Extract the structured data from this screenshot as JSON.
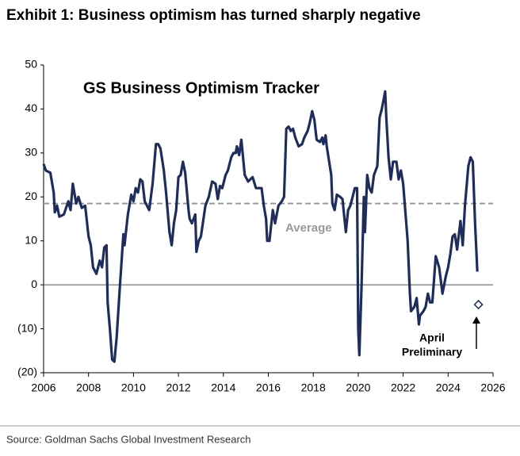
{
  "chart_data": {
    "type": "line",
    "title": "Exhibit 1: Business optimism has turned sharply negative",
    "inner_title": "GS Business Optimism Tracker",
    "source": "Source: Goldman Sachs Global Investment Research",
    "average_label": "Average",
    "average": 18.5,
    "annotation": [
      "April",
      "Preliminary"
    ],
    "color": "#1f2d5c",
    "average_color": "#999999",
    "xlim": [
      2006,
      2026
    ],
    "xticks": [
      2006,
      2008,
      2010,
      2012,
      2014,
      2016,
      2018,
      2020,
      2022,
      2024,
      2026
    ],
    "ylim": [
      -20,
      50
    ],
    "yticks": [
      {
        "value": -20,
        "label": "(20)"
      },
      {
        "value": -10,
        "label": "(10)"
      },
      0,
      10,
      20,
      30,
      40,
      50
    ],
    "x": [
      2006.0,
      2006.1,
      2006.3,
      2006.45,
      2006.5,
      2006.6,
      2006.7,
      2006.9,
      2007.1,
      2007.2,
      2007.3,
      2007.45,
      2007.55,
      2007.7,
      2007.85,
      2008.0,
      2008.1,
      2008.2,
      2008.35,
      2008.5,
      2008.6,
      2008.7,
      2008.8,
      2008.85,
      2008.95,
      2009.05,
      2009.15,
      2009.25,
      2009.4,
      2009.55,
      2009.6,
      2009.75,
      2009.9,
      2010.0,
      2010.1,
      2010.2,
      2010.3,
      2010.4,
      2010.5,
      2010.7,
      2010.85,
      2011.0,
      2011.1,
      2011.2,
      2011.35,
      2011.45,
      2011.6,
      2011.7,
      2011.8,
      2011.9,
      2012.0,
      2012.1,
      2012.2,
      2012.3,
      2012.45,
      2012.5,
      2012.6,
      2012.75,
      2012.8,
      2012.9,
      2013.0,
      2013.2,
      2013.35,
      2013.5,
      2013.65,
      2013.75,
      2013.85,
      2013.95,
      2014.1,
      2014.2,
      2014.35,
      2014.45,
      2014.55,
      2014.6,
      2014.7,
      2014.8,
      2014.95,
      2015.1,
      2015.2,
      2015.3,
      2015.45,
      2015.55,
      2015.7,
      2015.8,
      2015.9,
      2015.95,
      2016.05,
      2016.2,
      2016.3,
      2016.45,
      2016.6,
      2016.7,
      2016.8,
      2016.9,
      2017.0,
      2017.1,
      2017.2,
      2017.35,
      2017.5,
      2017.6,
      2017.75,
      2017.85,
      2017.95,
      2018.05,
      2018.15,
      2018.3,
      2018.4,
      2018.45,
      2018.55,
      2018.6,
      2018.8,
      2018.85,
      2018.95,
      2019.05,
      2019.2,
      2019.3,
      2019.45,
      2019.55,
      2019.65,
      2019.75,
      2019.85,
      2019.95,
      2020.0,
      2020.05,
      2020.15,
      2020.25,
      2020.3,
      2020.4,
      2020.5,
      2020.6,
      2020.7,
      2020.85,
      2020.95,
      2021.05,
      2021.2,
      2021.25,
      2021.35,
      2021.45,
      2021.55,
      2021.7,
      2021.8,
      2021.9,
      2022.0,
      2022.2,
      2022.3,
      2022.35,
      2022.5,
      2022.6,
      2022.7,
      2022.75,
      2022.9,
      2023.0,
      2023.1,
      2023.2,
      2023.3,
      2023.45,
      2023.6,
      2023.75,
      2023.9,
      2024.0,
      2024.1,
      2024.2,
      2024.3,
      2024.4,
      2024.55,
      2024.65,
      2024.75,
      2024.9,
      2025.0,
      2025.1,
      2025.2,
      2025.3
    ],
    "values": [
      27.5,
      26,
      25.5,
      21,
      16.5,
      18,
      15.5,
      16,
      19,
      17,
      23,
      18.5,
      20,
      17.5,
      18,
      11,
      9,
      4,
      2.5,
      5.5,
      4,
      8.5,
      9,
      -4,
      -10,
      -17,
      -17.5,
      -12,
      0,
      11.5,
      9,
      16,
      20.5,
      19,
      22,
      21,
      24,
      23.5,
      19,
      17,
      23,
      32,
      32,
      31,
      26,
      21,
      12,
      9,
      14,
      17,
      24.5,
      25,
      28,
      25.5,
      17,
      15,
      14,
      16,
      7.5,
      10,
      11,
      18,
      20,
      23.5,
      23,
      19.5,
      22.5,
      22,
      25,
      26,
      29,
      30,
      30,
      31.5,
      29.5,
      33,
      25,
      23.5,
      24,
      24.5,
      22,
      22,
      22,
      18,
      15,
      10,
      10,
      17,
      14,
      18,
      19,
      20,
      35.5,
      36,
      35,
      35.5,
      33.5,
      31.5,
      32,
      33.5,
      35,
      37,
      39.5,
      37.5,
      33,
      32.5,
      33.5,
      32,
      34,
      31.5,
      25,
      18.5,
      17,
      20.5,
      20,
      19.5,
      12,
      17,
      18,
      20,
      22,
      22,
      -10,
      -16,
      0,
      20,
      12,
      25,
      22,
      21,
      25,
      27,
      38,
      40,
      44,
      38,
      29,
      24,
      28,
      28,
      24,
      26,
      23,
      10,
      -2,
      -6,
      -5,
      -3,
      -9,
      -7,
      -6,
      -5,
      -2,
      -4,
      -4,
      6.5,
      4,
      -2,
      2,
      4,
      7,
      11,
      11.5,
      8,
      14.5,
      9,
      18,
      27,
      29,
      28,
      14,
      3
    ],
    "preliminary": {
      "x": 2025.35,
      "value": -4.5
    }
  }
}
